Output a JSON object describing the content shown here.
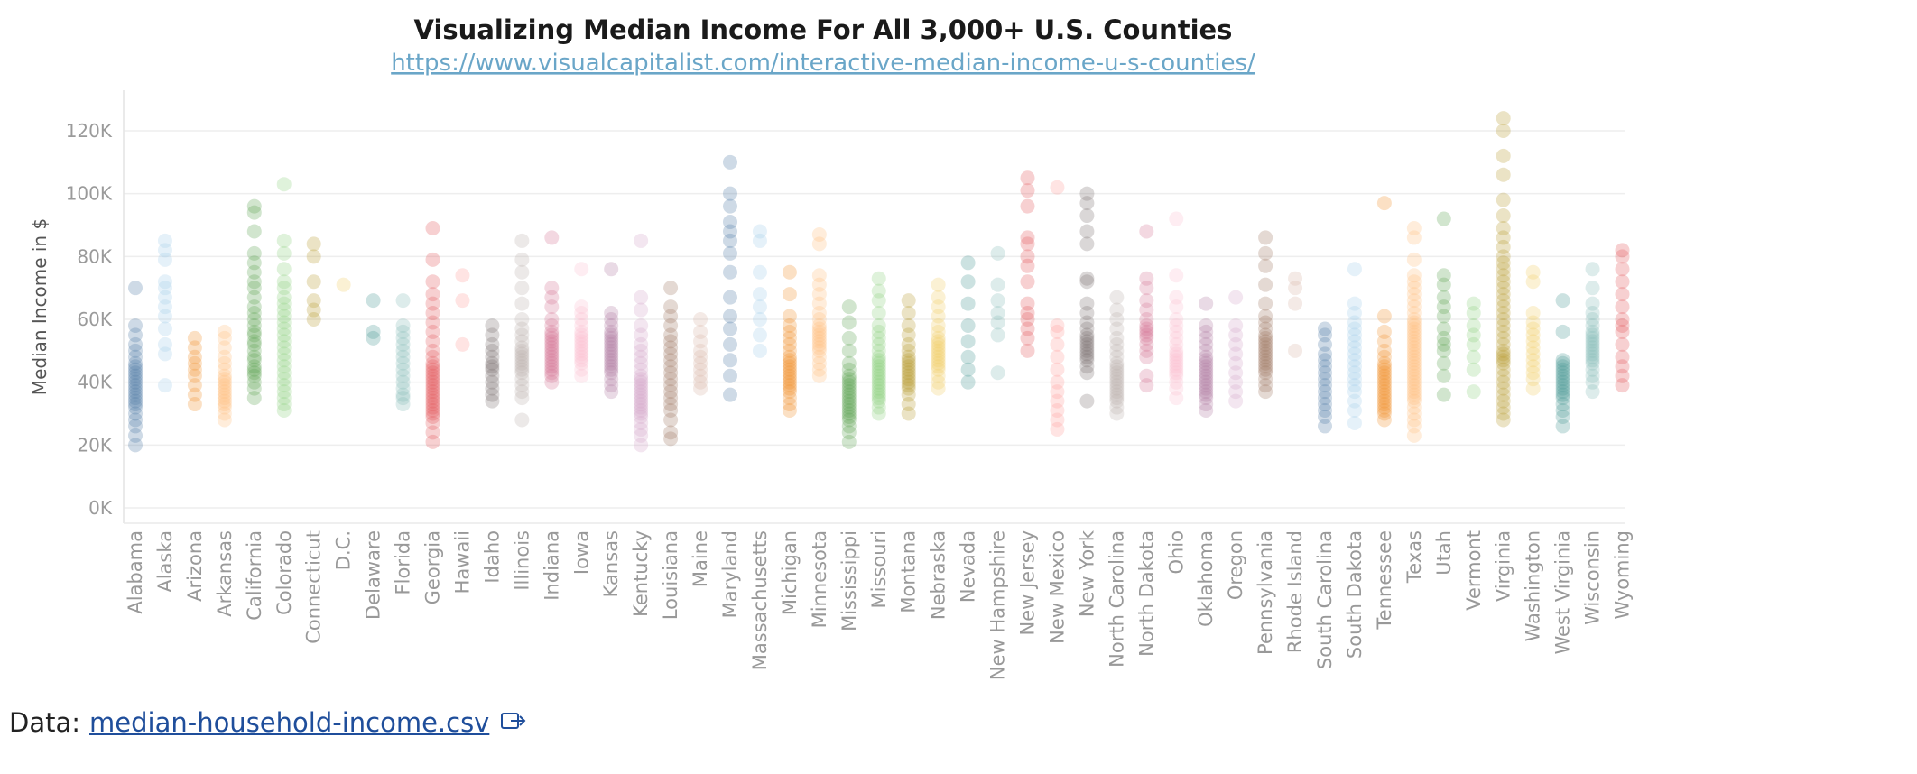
{
  "chart_data": {
    "type": "scatter",
    "title": "Visualizing Median Income For All 3,000+ U.S. Counties",
    "subtitle": "https://www.visualcapitalist.com/interactive-median-income-u-s-counties/",
    "ylabel": "Median Income in $",
    "xlabel": "",
    "ylim": [
      0,
      130000
    ],
    "yticks": [
      0,
      20000,
      40000,
      60000,
      80000,
      100000,
      120000
    ],
    "ytick_labels": [
      "0K",
      "20K",
      "40K",
      "60K",
      "80K",
      "100K",
      "120K"
    ],
    "grid": true,
    "categories": [
      "Alabama",
      "Alaska",
      "Arizona",
      "Arkansas",
      "California",
      "Colorado",
      "Connecticut",
      "D.C.",
      "Delaware",
      "Florida",
      "Georgia",
      "Hawaii",
      "Idaho",
      "Illinois",
      "Indiana",
      "Iowa",
      "Kansas",
      "Kentucky",
      "Louisiana",
      "Maine",
      "Maryland",
      "Massachusetts",
      "Michigan",
      "Minnesota",
      "Mississippi",
      "Missouri",
      "Montana",
      "Nebraska",
      "Nevada",
      "New Hampshire",
      "New Jersey",
      "New Mexico",
      "New York",
      "North Carolina",
      "North Dakota",
      "Ohio",
      "Oklahoma",
      "Oregon",
      "Pennsylvania",
      "Rhode Island",
      "South Carolina",
      "South Dakota",
      "Tennessee",
      "Texas",
      "Utah",
      "Vermont",
      "Virginia",
      "Washington",
      "West Virginia",
      "Wisconsin",
      "Wyoming"
    ],
    "colors": [
      "#4e79a7",
      "#a0cbe8",
      "#f28e2b",
      "#ffbe7d",
      "#59a14f",
      "#8cd17d",
      "#b6992d",
      "#f1ce63",
      "#499894",
      "#86bcb6",
      "#e15759",
      "#ff9d9a",
      "#79706e",
      "#bab0ac",
      "#d37295",
      "#fabfd2",
      "#b07aa1",
      "#d4a6c8",
      "#9d7660",
      "#d7b5a6",
      "#4e79a7",
      "#a0cbe8",
      "#f28e2b",
      "#ffbe7d",
      "#59a14f",
      "#8cd17d",
      "#b6992d",
      "#f1ce63",
      "#499894",
      "#86bcb6",
      "#e15759",
      "#ff9d9a",
      "#79706e",
      "#bab0ac",
      "#d37295",
      "#fabfd2",
      "#b07aa1",
      "#d4a6c8",
      "#9d7660",
      "#d7b5a6",
      "#4e79a7",
      "#a0cbe8",
      "#f28e2b",
      "#ffbe7d",
      "#59a14f",
      "#8cd17d",
      "#b6992d",
      "#f1ce63",
      "#499894",
      "#86bcb6",
      "#e15759"
    ],
    "series": [
      {
        "name": "Alabama",
        "values": [
          20,
          23,
          26,
          28,
          30,
          32,
          33,
          34,
          35,
          36,
          37,
          38,
          39,
          40,
          41,
          42,
          43,
          44,
          45,
          46,
          48,
          50,
          52,
          55,
          58,
          70
        ]
      },
      {
        "name": "Alaska",
        "values": [
          39,
          49,
          52,
          57,
          61,
          64,
          67,
          70,
          72,
          79,
          82,
          85
        ]
      },
      {
        "name": "Arizona",
        "values": [
          33,
          36,
          39,
          42,
          44,
          46,
          48,
          51,
          54
        ]
      },
      {
        "name": "Arkansas",
        "values": [
          28,
          30,
          32,
          33,
          34,
          35,
          36,
          37,
          38,
          39,
          40,
          41,
          42,
          44,
          46,
          48,
          51,
          54,
          56
        ]
      },
      {
        "name": "California",
        "values": [
          35,
          38,
          40,
          42,
          43,
          44,
          45,
          47,
          48,
          50,
          52,
          53,
          55,
          56,
          58,
          60,
          62,
          64,
          67,
          70,
          72,
          75,
          78,
          81,
          88,
          94,
          96
        ]
      },
      {
        "name": "Colorado",
        "values": [
          31,
          33,
          35,
          37,
          39,
          41,
          43,
          45,
          47,
          49,
          51,
          53,
          55,
          57,
          59,
          61,
          63,
          65,
          67,
          70,
          72,
          76,
          81,
          85,
          103
        ]
      },
      {
        "name": "Connecticut",
        "values": [
          60,
          63,
          66,
          72,
          80,
          84
        ]
      },
      {
        "name": "D.C.",
        "values": [
          71
        ]
      },
      {
        "name": "Delaware",
        "values": [
          54,
          56,
          66
        ]
      },
      {
        "name": "Florida",
        "values": [
          33,
          35,
          36,
          38,
          40,
          42,
          44,
          46,
          48,
          50,
          52,
          54,
          56,
          58,
          66
        ]
      },
      {
        "name": "Georgia",
        "values": [
          21,
          24,
          27,
          29,
          30,
          31,
          32,
          33,
          34,
          35,
          36,
          37,
          38,
          39,
          40,
          41,
          42,
          43,
          44,
          45,
          46,
          48,
          50,
          53,
          56,
          59,
          62,
          65,
          68,
          72,
          79,
          89
        ]
      },
      {
        "name": "Hawaii",
        "values": [
          52,
          66,
          74
        ]
      },
      {
        "name": "Idaho",
        "values": [
          34,
          36,
          38,
          40,
          42,
          44,
          45,
          46,
          48,
          50,
          52,
          55,
          58
        ]
      },
      {
        "name": "Illinois",
        "values": [
          28,
          35,
          37,
          39,
          41,
          43,
          44,
          45,
          46,
          47,
          48,
          49,
          50,
          51,
          53,
          55,
          57,
          60,
          65,
          70,
          75,
          79,
          85
        ]
      },
      {
        "name": "Indiana",
        "values": [
          40,
          42,
          43,
          44,
          45,
          46,
          47,
          48,
          49,
          50,
          51,
          52,
          53,
          54,
          55,
          56,
          58,
          60,
          64,
          67,
          70,
          86
        ]
      },
      {
        "name": "Iowa",
        "values": [
          42,
          44,
          46,
          47,
          48,
          49,
          50,
          51,
          52,
          53,
          54,
          55,
          56,
          58,
          60,
          62,
          64,
          76
        ]
      },
      {
        "name": "Kansas",
        "values": [
          37,
          39,
          41,
          43,
          44,
          45,
          46,
          47,
          48,
          49,
          50,
          51,
          52,
          53,
          54,
          55,
          56,
          58,
          60,
          62,
          76
        ]
      },
      {
        "name": "Kentucky",
        "values": [
          20,
          23,
          25,
          27,
          29,
          30,
          31,
          32,
          33,
          34,
          35,
          36,
          37,
          38,
          39,
          40,
          41,
          42,
          44,
          46,
          48,
          50,
          52,
          55,
          58,
          63,
          67,
          85
        ]
      },
      {
        "name": "Louisiana",
        "values": [
          22,
          24,
          28,
          31,
          33,
          35,
          37,
          39,
          41,
          43,
          45,
          47,
          49,
          51,
          53,
          55,
          58,
          61,
          64,
          70
        ]
      },
      {
        "name": "Maine",
        "values": [
          38,
          40,
          42,
          44,
          46,
          48,
          50,
          53,
          56,
          60
        ]
      },
      {
        "name": "Maryland",
        "values": [
          36,
          42,
          47,
          52,
          57,
          61,
          67,
          75,
          81,
          85,
          88,
          91,
          96,
          100,
          110
        ]
      },
      {
        "name": "Massachusetts",
        "values": [
          50,
          55,
          60,
          64,
          68,
          75,
          85,
          88
        ]
      },
      {
        "name": "Michigan",
        "values": [
          31,
          33,
          35,
          37,
          38,
          39,
          40,
          41,
          42,
          43,
          44,
          45,
          46,
          47,
          48,
          50,
          52,
          54,
          56,
          58,
          61,
          68,
          75
        ]
      },
      {
        "name": "Minnesota",
        "values": [
          42,
          44,
          46,
          48,
          50,
          51,
          52,
          53,
          54,
          55,
          56,
          57,
          58,
          60,
          62,
          65,
          68,
          71,
          74,
          84,
          87
        ]
      },
      {
        "name": "Mississippi",
        "values": [
          21,
          24,
          26,
          28,
          29,
          30,
          31,
          32,
          33,
          34,
          35,
          36,
          37,
          38,
          39,
          40,
          41,
          42,
          44,
          46,
          50,
          54,
          59,
          64
        ]
      },
      {
        "name": "Missouri",
        "values": [
          30,
          32,
          34,
          35,
          36,
          37,
          38,
          39,
          40,
          41,
          42,
          43,
          44,
          45,
          46,
          47,
          48,
          50,
          52,
          54,
          56,
          58,
          62,
          66,
          69,
          73
        ]
      },
      {
        "name": "Montana",
        "values": [
          30,
          33,
          36,
          38,
          39,
          40,
          41,
          42,
          43,
          44,
          45,
          46,
          47,
          48,
          50,
          52,
          55,
          58,
          62,
          66
        ]
      },
      {
        "name": "Nebraska",
        "values": [
          38,
          40,
          42,
          44,
          45,
          46,
          47,
          48,
          49,
          50,
          51,
          52,
          53,
          54,
          56,
          58,
          61,
          64,
          67,
          71
        ]
      },
      {
        "name": "Nevada",
        "values": [
          40,
          44,
          48,
          53,
          58,
          65,
          72,
          78
        ]
      },
      {
        "name": "New Hampshire",
        "values": [
          43,
          55,
          59,
          62,
          66,
          71,
          81
        ]
      },
      {
        "name": "New Jersey",
        "values": [
          50,
          54,
          57,
          60,
          62,
          65,
          72,
          77,
          80,
          84,
          86,
          96,
          101,
          105
        ]
      },
      {
        "name": "New Mexico",
        "values": [
          25,
          28,
          31,
          34,
          37,
          40,
          44,
          48,
          52,
          56,
          58,
          102
        ]
      },
      {
        "name": "New York",
        "values": [
          34,
          43,
          45,
          47,
          48,
          49,
          50,
          51,
          52,
          53,
          54,
          55,
          57,
          59,
          62,
          65,
          72,
          73,
          84,
          88,
          93,
          97,
          100
        ]
      },
      {
        "name": "North Carolina",
        "values": [
          30,
          32,
          34,
          35,
          36,
          37,
          38,
          39,
          40,
          41,
          42,
          43,
          44,
          45,
          46,
          48,
          50,
          52,
          54,
          57,
          60,
          63,
          67
        ]
      },
      {
        "name": "North Dakota",
        "values": [
          39,
          42,
          48,
          50,
          52,
          54,
          55,
          56,
          57,
          58,
          60,
          63,
          66,
          70,
          73,
          88
        ]
      },
      {
        "name": "Ohio",
        "values": [
          35,
          38,
          40,
          42,
          43,
          44,
          45,
          46,
          47,
          48,
          49,
          50,
          52,
          54,
          56,
          58,
          60,
          64,
          67,
          74,
          92
        ]
      },
      {
        "name": "Oklahoma",
        "values": [
          31,
          33,
          35,
          36,
          37,
          38,
          39,
          40,
          41,
          42,
          43,
          44,
          45,
          46,
          47,
          48,
          50,
          52,
          54,
          56,
          58,
          65
        ]
      },
      {
        "name": "Oregon",
        "values": [
          34,
          37,
          40,
          43,
          46,
          49,
          52,
          55,
          58,
          67
        ]
      },
      {
        "name": "Pennsylvania",
        "values": [
          37,
          39,
          41,
          43,
          44,
          45,
          46,
          47,
          48,
          49,
          50,
          51,
          52,
          53,
          54,
          55,
          57,
          59,
          61,
          65,
          71,
          77,
          81,
          86
        ]
      },
      {
        "name": "Rhode Island",
        "values": [
          50,
          65,
          70,
          73
        ]
      },
      {
        "name": "South Carolina",
        "values": [
          26,
          29,
          31,
          33,
          35,
          37,
          39,
          41,
          43,
          45,
          47,
          49,
          52,
          55,
          57
        ]
      },
      {
        "name": "South Dakota",
        "values": [
          27,
          31,
          34,
          37,
          39,
          41,
          43,
          45,
          47,
          49,
          51,
          53,
          55,
          57,
          59,
          62,
          65,
          76
        ]
      },
      {
        "name": "Tennessee",
        "values": [
          28,
          30,
          31,
          32,
          33,
          34,
          35,
          36,
          37,
          38,
          39,
          40,
          41,
          42,
          43,
          44,
          45,
          46,
          48,
          50,
          53,
          56,
          61,
          97
        ]
      },
      {
        "name": "Texas",
        "values": [
          23,
          26,
          28,
          30,
          32,
          34,
          35,
          36,
          37,
          38,
          39,
          40,
          41,
          42,
          43,
          44,
          45,
          46,
          47,
          48,
          49,
          50,
          51,
          52,
          53,
          54,
          55,
          56,
          57,
          58,
          59,
          60,
          62,
          64,
          66,
          68,
          70,
          72,
          74,
          79,
          86,
          89
        ]
      },
      {
        "name": "Utah",
        "values": [
          36,
          42,
          46,
          50,
          52,
          54,
          57,
          61,
          64,
          67,
          71,
          74,
          92
        ]
      },
      {
        "name": "Vermont",
        "values": [
          37,
          44,
          48,
          52,
          55,
          58,
          62,
          65
        ]
      },
      {
        "name": "Virginia",
        "values": [
          28,
          30,
          32,
          34,
          36,
          38,
          40,
          42,
          44,
          46,
          47,
          48,
          49,
          50,
          52,
          54,
          56,
          58,
          60,
          62,
          64,
          66,
          68,
          70,
          72,
          74,
          76,
          78,
          80,
          83,
          86,
          89,
          93,
          98,
          106,
          112,
          120,
          124
        ]
      },
      {
        "name": "Washington",
        "values": [
          38,
          41,
          43,
          45,
          47,
          49,
          51,
          53,
          55,
          57,
          59,
          62,
          72,
          75
        ]
      },
      {
        "name": "West Virginia",
        "values": [
          26,
          29,
          31,
          33,
          35,
          36,
          37,
          38,
          39,
          40,
          41,
          42,
          43,
          44,
          45,
          46,
          47,
          56,
          66
        ]
      },
      {
        "name": "Wisconsin",
        "values": [
          37,
          40,
          42,
          44,
          46,
          47,
          48,
          49,
          50,
          51,
          52,
          53,
          54,
          55,
          56,
          58,
          60,
          62,
          65,
          70,
          76
        ]
      },
      {
        "name": "Wyoming",
        "values": [
          39,
          42,
          45,
          48,
          52,
          56,
          58,
          60,
          64,
          68,
          72,
          76,
          80,
          82
        ]
      }
    ],
    "value_unit": "thousands of $"
  },
  "footer": {
    "prefix": "Data:",
    "link_text": "median-household-income.csv",
    "icon": "external-link-icon"
  }
}
